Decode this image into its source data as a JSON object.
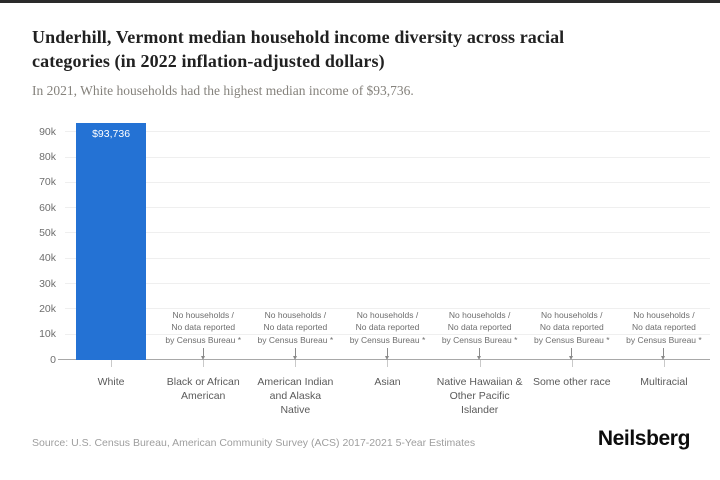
{
  "page": {
    "title": "Underhill, Vermont median household income diversity across racial\ncategories (in 2022 inflation-adjusted dollars)",
    "subtitle": "In 2021, White households had the highest median income of $93,736.",
    "source": "Source: U.S. Census Bureau, American Community Survey (ACS) 2017-2021 5-Year Estimates",
    "brand": "Neilsberg"
  },
  "chart_data": {
    "type": "bar",
    "title": "Underhill, Vermont median household income diversity across racial categories (in 2022 inflation-adjusted dollars)",
    "xlabel": "",
    "ylabel": "",
    "categories": [
      "White",
      "Black or African\nAmerican",
      "American Indian\nand Alaska\nNative",
      "Asian",
      "Native Hawaiian &\nOther Pacific\nIslander",
      "Some other race",
      "Multiracial"
    ],
    "values": [
      93736,
      null,
      null,
      null,
      null,
      null,
      null
    ],
    "bar_labels": [
      "$93,736",
      null,
      null,
      null,
      null,
      null,
      null
    ],
    "no_data_note": "No households /\nNo data reported\nby Census Bureau *",
    "y_tick_values": [
      0,
      10000,
      20000,
      30000,
      40000,
      50000,
      60000,
      70000,
      80000,
      90000
    ],
    "y_ticks": [
      "0",
      "10k",
      "20k",
      "30k",
      "40k",
      "50k",
      "60k",
      "70k",
      "80k",
      "90k"
    ],
    "ylim": [
      0,
      96000
    ],
    "grid": true,
    "legend": false,
    "bar_color": "#2472d4"
  }
}
